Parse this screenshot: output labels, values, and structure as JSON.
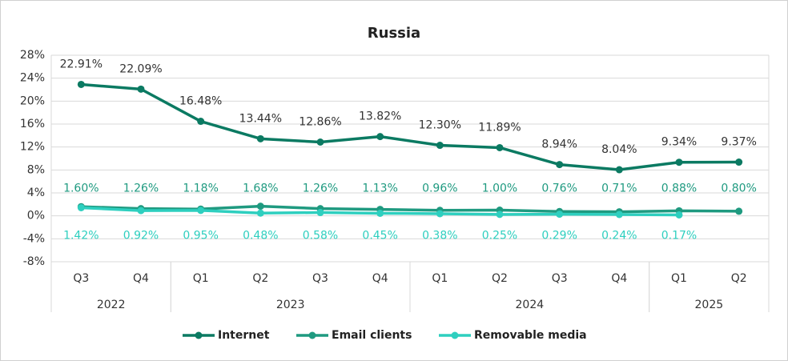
{
  "chart_data": {
    "type": "line",
    "title": "Russia",
    "year_groups": [
      {
        "label": "2022",
        "quarters": [
          "Q3",
          "Q4"
        ]
      },
      {
        "label": "2023",
        "quarters": [
          "Q1",
          "Q2",
          "Q3",
          "Q4"
        ]
      },
      {
        "label": "2024",
        "quarters": [
          "Q1",
          "Q2",
          "Q3",
          "Q4"
        ]
      },
      {
        "label": "2025",
        "quarters": [
          "Q1",
          "Q2"
        ]
      }
    ],
    "series": [
      {
        "name": "Internet",
        "color": "#0b7a62",
        "values": [
          22.91,
          22.09,
          16.48,
          13.44,
          12.86,
          13.82,
          12.3,
          11.89,
          8.94,
          8.04,
          9.34,
          9.37
        ],
        "value_labels": [
          "22.91%",
          "22.09%",
          "16.48%",
          "13.44%",
          "12.86%",
          "13.82%",
          "12.30%",
          "11.89%",
          "8.94%",
          "8.04%",
          "9.34%",
          "9.37%"
        ]
      },
      {
        "name": "Email clients",
        "color": "#1f9a80",
        "values": [
          1.6,
          1.26,
          1.18,
          1.68,
          1.26,
          1.13,
          0.96,
          1.0,
          0.76,
          0.71,
          0.88,
          0.8
        ],
        "value_labels": [
          "1.60%",
          "1.26%",
          "1.18%",
          "1.68%",
          "1.26%",
          "1.13%",
          "0.96%",
          "1.00%",
          "0.76%",
          "0.71%",
          "0.88%",
          "0.80%"
        ]
      },
      {
        "name": "Removable media",
        "color": "#2ecfbf",
        "values": [
          1.42,
          0.92,
          0.95,
          0.48,
          0.58,
          0.45,
          0.38,
          0.25,
          0.29,
          0.24,
          0.17,
          null
        ],
        "value_labels": [
          "1.42%",
          "0.92%",
          "0.95%",
          "0.48%",
          "0.58%",
          "0.45%",
          "0.38%",
          "0.25%",
          "0.29%",
          "0.24%",
          "0.17%",
          null
        ]
      }
    ],
    "ylim": [
      -8,
      28
    ],
    "yticks": [
      {
        "value": -8,
        "label": "-8%"
      },
      {
        "value": -4,
        "label": "-4%"
      },
      {
        "value": 0,
        "label": "0%"
      },
      {
        "value": 4,
        "label": "4%"
      },
      {
        "value": 8,
        "label": "8%"
      },
      {
        "value": 12,
        "label": "12%"
      },
      {
        "value": 16,
        "label": "16%"
      },
      {
        "value": 20,
        "label": "20%"
      },
      {
        "value": 24,
        "label": "24%"
      },
      {
        "value": 28,
        "label": "28%"
      }
    ],
    "grid": true,
    "legend": "bottom"
  }
}
